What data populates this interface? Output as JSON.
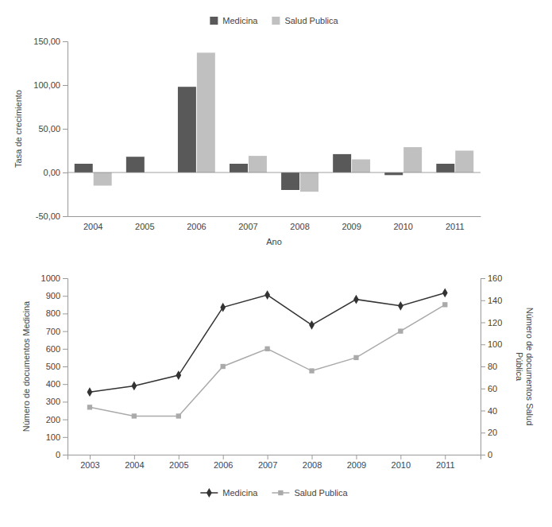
{
  "chart_data": [
    {
      "type": "bar",
      "xlabel": "Ano",
      "ylabel": "Tasa de crecimiento",
      "categories": [
        "2004",
        "2005",
        "2006",
        "2007",
        "2008",
        "2009",
        "2010",
        "2011"
      ],
      "series": [
        {
          "name": "Medicina",
          "color": "#595959",
          "values": [
            10,
            18,
            98,
            10,
            -20,
            21,
            -3,
            10
          ]
        },
        {
          "name": "Salud Publica",
          "color": "#c0c0c0",
          "values": [
            -15,
            0,
            137,
            19,
            -22,
            15,
            29,
            25
          ]
        }
      ],
      "ylim": [
        -50,
        150
      ],
      "yticks": [
        {
          "value": -50,
          "label": "-50,00"
        },
        {
          "value": 0,
          "label": "0,00"
        },
        {
          "value": 50,
          "label": "50,00"
        },
        {
          "value": 100,
          "label": "100,00"
        },
        {
          "value": 150,
          "label": "150,00"
        }
      ],
      "grid": false,
      "legend": "top"
    },
    {
      "type": "line",
      "ylabel": "Número de documentos Medicina",
      "y2label": "Número de documentos Salud\nPública",
      "x": [
        2003,
        2004,
        2005,
        2006,
        2007,
        2008,
        2009,
        2010,
        2011
      ],
      "series": [
        {
          "name": "Medicina",
          "color": "#333333",
          "marker": "diamond",
          "values": [
            355,
            390,
            450,
            835,
            905,
            735,
            880,
            843,
            917
          ]
        },
        {
          "name": "Salud Publica",
          "color": "#aaaaaa",
          "marker": "square",
          "axis": "y2",
          "values": [
            43,
            35,
            35,
            80,
            96,
            76,
            88,
            112,
            136
          ]
        }
      ],
      "xlim": [
        2002.5,
        2011.8
      ],
      "xticks": [
        2003,
        2004,
        2005,
        2006,
        2007,
        2008,
        2009,
        2010,
        2011
      ],
      "ylim": [
        0,
        1000
      ],
      "yticks": [
        0,
        100,
        200,
        300,
        400,
        500,
        600,
        700,
        800,
        900,
        1000
      ],
      "y2lim": [
        0,
        160
      ],
      "y2ticks": [
        0,
        20,
        40,
        60,
        80,
        100,
        120,
        140,
        160
      ],
      "grid": false,
      "legend": "bottom"
    }
  ]
}
